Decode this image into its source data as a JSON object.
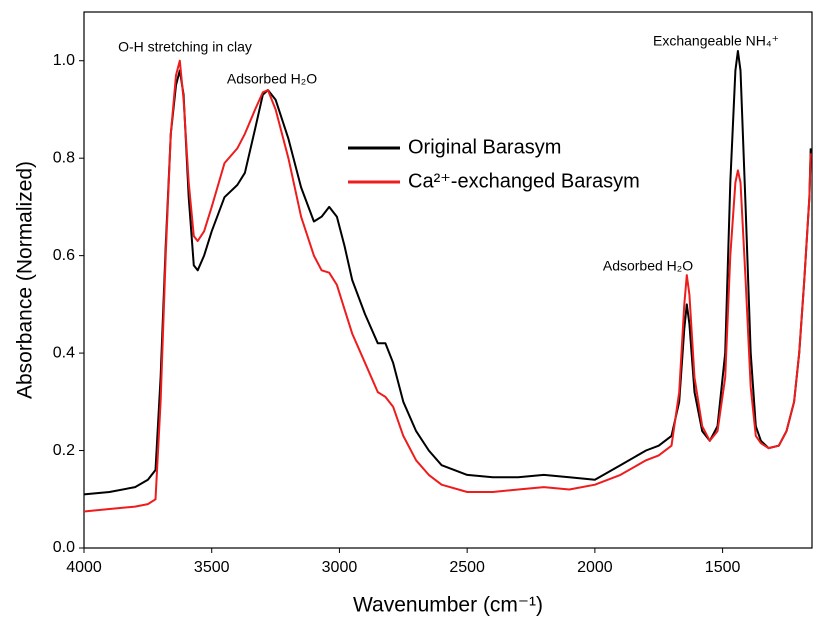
{
  "chart_data": {
    "type": "line",
    "x_label": "Wavenumber (cm⁻¹)",
    "y_label": "Absorbance (Normalized)",
    "xlim": [
      4000,
      1150
    ],
    "ylim": [
      0,
      1.1
    ],
    "xticks": [
      4000,
      3500,
      3000,
      2500,
      2000,
      1500
    ],
    "yticks": [
      {
        "value": 0,
        "label": "0.0"
      },
      0.2,
      0.4,
      0.6,
      0.8,
      {
        "value": 1,
        "label": "1.0"
      }
    ],
    "annotations": [
      "O-H stretching in clay",
      "Adsorbed H₂O",
      "Adsorbed H₂O",
      "Exchangeable NH₄⁺"
    ],
    "x": [
      4000,
      3900,
      3800,
      3750,
      3720,
      3700,
      3680,
      3660,
      3640,
      3625,
      3610,
      3590,
      3570,
      3555,
      3530,
      3500,
      3450,
      3400,
      3370,
      3330,
      3300,
      3280,
      3250,
      3200,
      3150,
      3100,
      3070,
      3040,
      3010,
      2980,
      2950,
      2900,
      2850,
      2820,
      2790,
      2750,
      2700,
      2650,
      2600,
      2500,
      2400,
      2300,
      2200,
      2100,
      2000,
      1900,
      1800,
      1750,
      1700,
      1670,
      1650,
      1640,
      1630,
      1610,
      1580,
      1550,
      1520,
      1490,
      1470,
      1450,
      1440,
      1430,
      1410,
      1390,
      1370,
      1350,
      1320,
      1280,
      1250,
      1220,
      1200,
      1180,
      1160,
      1155
    ],
    "series": [
      {
        "name": "Original Barasym",
        "color": "#000000",
        "values": [
          0.11,
          0.115,
          0.125,
          0.14,
          0.16,
          0.35,
          0.62,
          0.85,
          0.95,
          0.98,
          0.93,
          0.72,
          0.58,
          0.57,
          0.6,
          0.65,
          0.72,
          0.745,
          0.77,
          0.86,
          0.93,
          0.94,
          0.92,
          0.84,
          0.74,
          0.67,
          0.68,
          0.7,
          0.68,
          0.62,
          0.55,
          0.48,
          0.42,
          0.42,
          0.38,
          0.3,
          0.24,
          0.2,
          0.17,
          0.15,
          0.145,
          0.145,
          0.15,
          0.145,
          0.14,
          0.17,
          0.2,
          0.21,
          0.23,
          0.3,
          0.45,
          0.5,
          0.46,
          0.32,
          0.24,
          0.22,
          0.25,
          0.4,
          0.75,
          0.98,
          1.02,
          0.98,
          0.7,
          0.4,
          0.25,
          0.22,
          0.205,
          0.21,
          0.24,
          0.3,
          0.4,
          0.55,
          0.72,
          0.82
        ]
      },
      {
        "name": "Ca²⁺-exchanged Barasym",
        "color": "#ee1c1c",
        "values": [
          0.075,
          0.08,
          0.085,
          0.09,
          0.1,
          0.3,
          0.6,
          0.85,
          0.97,
          1.0,
          0.92,
          0.75,
          0.64,
          0.63,
          0.65,
          0.7,
          0.79,
          0.82,
          0.85,
          0.9,
          0.935,
          0.94,
          0.9,
          0.8,
          0.68,
          0.6,
          0.57,
          0.565,
          0.54,
          0.49,
          0.44,
          0.38,
          0.32,
          0.31,
          0.29,
          0.23,
          0.18,
          0.15,
          0.13,
          0.115,
          0.115,
          0.12,
          0.125,
          0.12,
          0.13,
          0.15,
          0.18,
          0.19,
          0.21,
          0.32,
          0.5,
          0.56,
          0.52,
          0.35,
          0.25,
          0.22,
          0.24,
          0.35,
          0.6,
          0.75,
          0.775,
          0.75,
          0.55,
          0.33,
          0.23,
          0.215,
          0.205,
          0.21,
          0.24,
          0.3,
          0.4,
          0.55,
          0.72,
          0.81
        ]
      }
    ]
  }
}
